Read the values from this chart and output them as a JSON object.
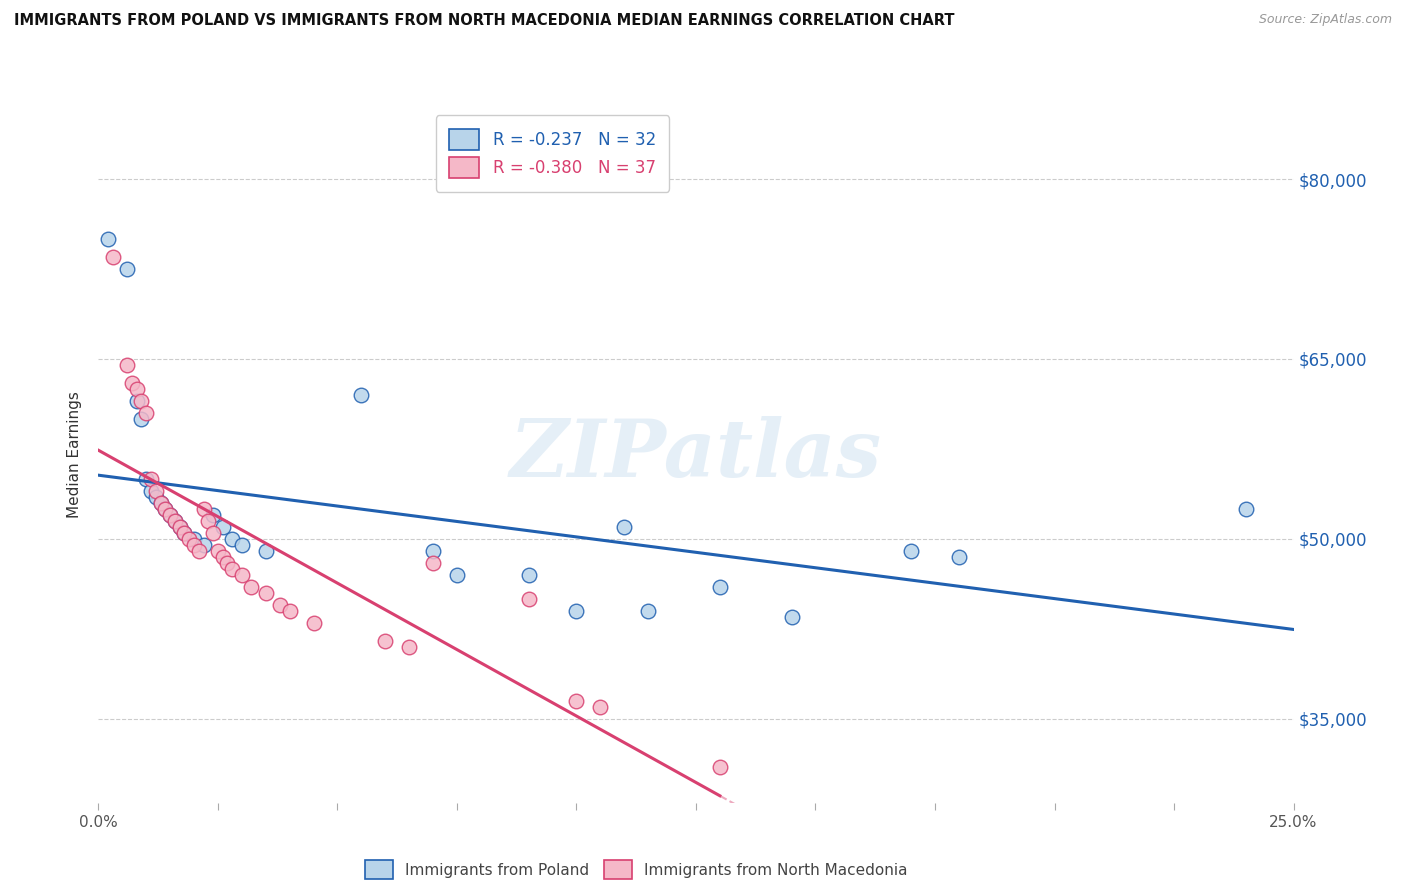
{
  "title": "IMMIGRANTS FROM POLAND VS IMMIGRANTS FROM NORTH MACEDONIA MEDIAN EARNINGS CORRELATION CHART",
  "source": "Source: ZipAtlas.com",
  "ylabel": "Median Earnings",
  "y_ticks": [
    35000,
    50000,
    65000,
    80000
  ],
  "y_tick_labels": [
    "$35,000",
    "$50,000",
    "$65,000",
    "$80,000"
  ],
  "xlim": [
    0.0,
    0.25
  ],
  "ylim": [
    28000,
    86000
  ],
  "legend_poland": "R = -0.237   N = 32",
  "legend_macedonia": "R = -0.380   N = 37",
  "poland_color": "#b8d4ea",
  "macedonia_color": "#f5b8c8",
  "poland_line_color": "#2060b0",
  "macedonia_line_color": "#d84070",
  "poland_scatter": [
    [
      0.002,
      75000
    ],
    [
      0.006,
      72500
    ],
    [
      0.008,
      61500
    ],
    [
      0.009,
      60000
    ],
    [
      0.01,
      55000
    ],
    [
      0.011,
      54000
    ],
    [
      0.012,
      53500
    ],
    [
      0.013,
      53000
    ],
    [
      0.014,
      52500
    ],
    [
      0.015,
      52000
    ],
    [
      0.016,
      51500
    ],
    [
      0.017,
      51000
    ],
    [
      0.018,
      50500
    ],
    [
      0.02,
      50000
    ],
    [
      0.022,
      49500
    ],
    [
      0.024,
      52000
    ],
    [
      0.026,
      51000
    ],
    [
      0.028,
      50000
    ],
    [
      0.03,
      49500
    ],
    [
      0.035,
      49000
    ],
    [
      0.055,
      62000
    ],
    [
      0.07,
      49000
    ],
    [
      0.075,
      47000
    ],
    [
      0.09,
      47000
    ],
    [
      0.1,
      44000
    ],
    [
      0.11,
      51000
    ],
    [
      0.115,
      44000
    ],
    [
      0.13,
      46000
    ],
    [
      0.145,
      43500
    ],
    [
      0.17,
      49000
    ],
    [
      0.18,
      48500
    ],
    [
      0.24,
      52500
    ]
  ],
  "macedonia_scatter": [
    [
      0.003,
      73500
    ],
    [
      0.006,
      64500
    ],
    [
      0.007,
      63000
    ],
    [
      0.008,
      62500
    ],
    [
      0.009,
      61500
    ],
    [
      0.01,
      60500
    ],
    [
      0.011,
      55000
    ],
    [
      0.012,
      54000
    ],
    [
      0.013,
      53000
    ],
    [
      0.014,
      52500
    ],
    [
      0.015,
      52000
    ],
    [
      0.016,
      51500
    ],
    [
      0.017,
      51000
    ],
    [
      0.018,
      50500
    ],
    [
      0.019,
      50000
    ],
    [
      0.02,
      49500
    ],
    [
      0.021,
      49000
    ],
    [
      0.022,
      52500
    ],
    [
      0.023,
      51500
    ],
    [
      0.024,
      50500
    ],
    [
      0.025,
      49000
    ],
    [
      0.026,
      48500
    ],
    [
      0.027,
      48000
    ],
    [
      0.028,
      47500
    ],
    [
      0.03,
      47000
    ],
    [
      0.032,
      46000
    ],
    [
      0.035,
      45500
    ],
    [
      0.038,
      44500
    ],
    [
      0.04,
      44000
    ],
    [
      0.045,
      43000
    ],
    [
      0.06,
      41500
    ],
    [
      0.065,
      41000
    ],
    [
      0.07,
      48000
    ],
    [
      0.09,
      45000
    ],
    [
      0.1,
      36500
    ],
    [
      0.105,
      36000
    ],
    [
      0.13,
      31000
    ]
  ],
  "watermark": "ZIPatlas",
  "legend_label_poland": "Immigrants from Poland",
  "legend_label_macedonia": "Immigrants from North Macedonia",
  "x_ticks": [
    0.0,
    0.025,
    0.05,
    0.075,
    0.1,
    0.125,
    0.15,
    0.175,
    0.2,
    0.225,
    0.25
  ],
  "x_tick_major": [
    0.0,
    0.25
  ],
  "x_tick_labels_shown": [
    "0.0%",
    "25.0%"
  ]
}
